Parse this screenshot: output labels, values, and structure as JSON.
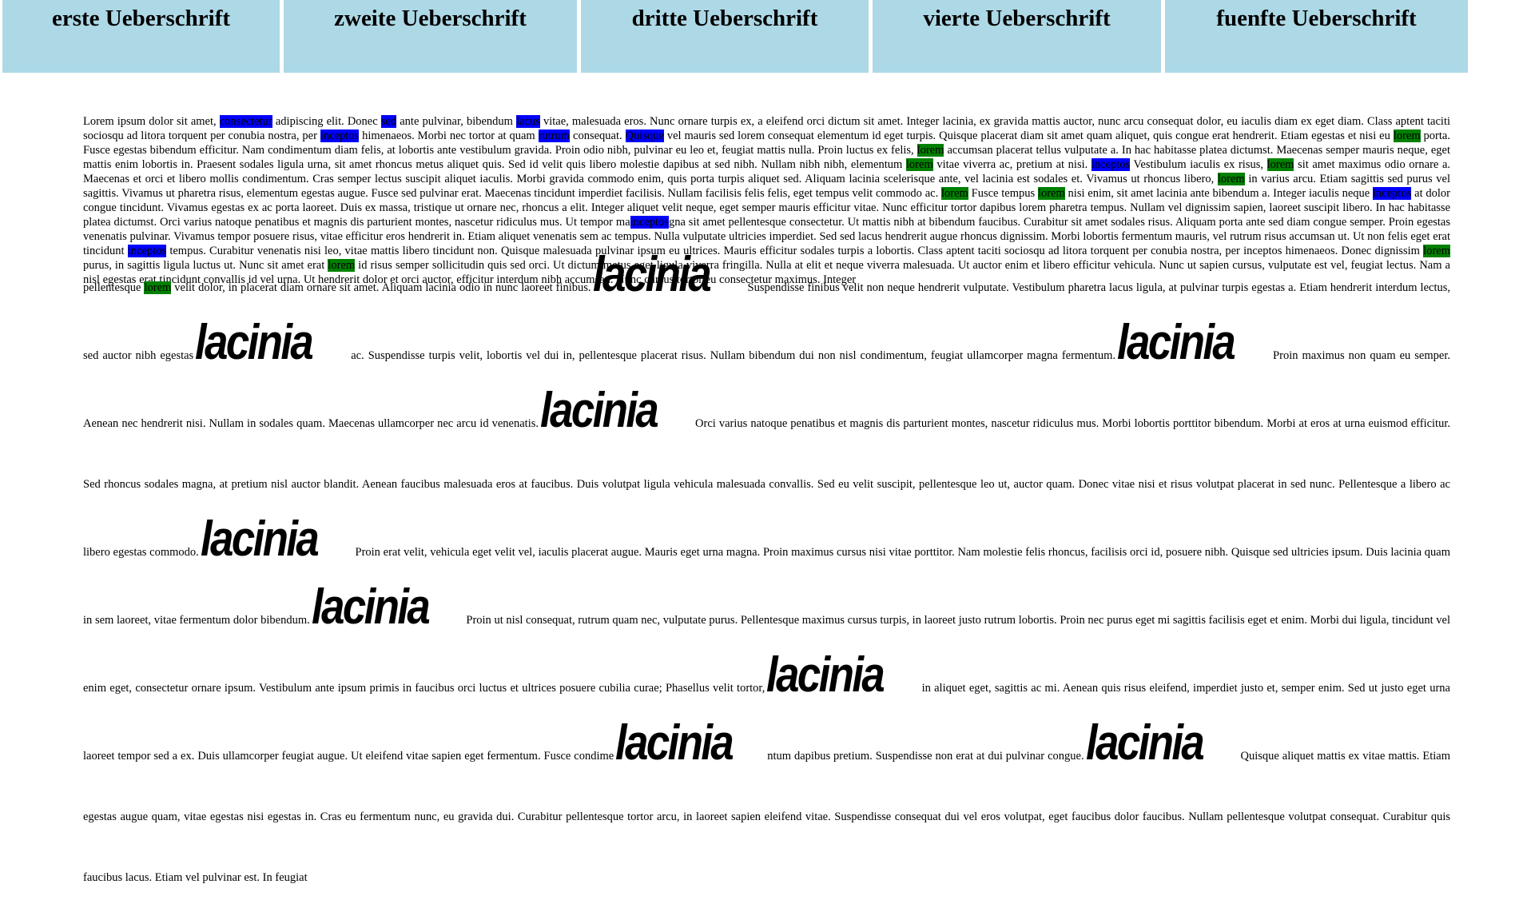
{
  "nav": {
    "items": [
      {
        "label": "erste Ueberschrift"
      },
      {
        "label": "zweite Ueberschrift"
      },
      {
        "label": "dritte Ueberschrift"
      },
      {
        "label": "vierte Ueberschrift"
      },
      {
        "label": "fuenfte Ueberschrift"
      }
    ]
  },
  "colors": {
    "nav_bg": "#add8e6",
    "highlight_blue": "#0000ff",
    "highlight_green": "#008000"
  },
  "logo_word": "lacinia",
  "p1": {
    "t00": "Lorem ipsum dolor sit amet, ",
    "h01": "consectetur",
    "t01": " adipiscing elit. Donec ",
    "h02": "sed",
    "t02": " ante pulvinar, bibendum ",
    "h03": "lacus",
    "t03": " vitae, malesuada eros. Nunc ornare turpis ex, a eleifend orci dictum sit amet. Integer lacinia, ex gravida mattis auctor, nunc arcu consequat dolor, eu iaculis diam ex eget diam. Class aptent taciti sociosqu ad litora torquent per conubia nostra, per ",
    "h04": "inceptos",
    "t04": " himenaeos. Morbi nec tortor at quam ",
    "h05": "rutrum",
    "t05": " consequat. ",
    "h06": "Quisque",
    "t06": " vel mauris sed lorem consequat elementum id eget turpis. Quisque placerat diam sit amet quam aliquet, quis congue erat hendrerit. Etiam egestas et nisi eu ",
    "h07": "lorem",
    "t07": " porta. Fusce egestas bibendum efficitur. Nam condimentum diam felis, at lobortis ante vestibulum gravida. Proin odio nibh, pulvinar eu leo et, feugiat mattis nulla. Proin luctus ex felis, ",
    "h08": "lorem",
    "t08": " accumsan placerat tellus vulputate a. In hac habitasse platea dictumst. Maecenas semper mauris neque, eget mattis enim lobortis in. Praesent sodales ligula urna, sit amet rhoncus metus aliquet quis. Sed id velit quis libero molestie dapibus at sed nibh. Nullam nibh nibh, elementum ",
    "h09": "lorem",
    "t09": " vitae viverra ac, pretium at nisi. ",
    "h10": "inceptos",
    "t10": " Vestibulum iaculis ex risus, ",
    "h11": "lorem",
    "t11": " sit amet maximus odio ornare a. Maecenas et orci et libero mollis condimentum. Cras semper lectus suscipit aliquet iaculis. Morbi gravida commodo enim, quis porta turpis aliquet sed. Aliquam lacinia scelerisque ante, vel lacinia est sodales et. Vivamus ut rhoncus libero, ",
    "h12": "lorem",
    "t12": " in varius arcu. Etiam sagittis sed purus vel sagittis. Vivamus ut pharetra risus, elementum egestas augue. Fusce sed pulvinar erat. Maecenas tincidunt imperdiet facilisis. Nullam facilisis felis felis, eget tempus velit commodo ac. ",
    "h13": "lorem",
    "t13": " Fusce tempus ",
    "h14": "lorem",
    "t14": " nisi enim, sit amet lacinia ante bibendum a. Integer iaculis neque ",
    "h15": "inceptos",
    "t15": " at dolor congue tincidunt. Vivamus egestas ex ac porta laoreet. Duis ex massa, tristique ut ornare nec, rhoncus a elit. Integer aliquet velit neque, eget semper mauris efficitur vitae. Nunc efficitur tortor dapibus lorem pharetra tempus. Nullam vel dignissim sapien, laoreet suscipit libero. In hac habitasse platea dictumst. Orci varius natoque penatibus et magnis dis parturient montes, nascetur ridiculus mus. Ut tempor ma",
    "h16": "inceptos",
    "t16": "gna sit amet pellentesque consectetur. Ut mattis nibh at bibendum faucibus. Curabitur sit amet sodales risus. Aliquam porta ante sed diam congue semper. Proin egestas venenatis pulvinar. Vivamus tempor posuere risus, vitae efficitur eros hendrerit in. Etiam aliquet venenatis sem ac tempus. Nulla vulputate ultricies imperdiet. Sed sed lacus hendrerit augue rhoncus dignissim. Morbi lobortis fermentum mauris, vel rutrum risus accumsan ut. Ut non felis eget erat tincidunt ",
    "h17": "inceptos",
    "t17": " tempus. Curabitur venenatis nisi leo, vitae mattis libero tincidunt non. Quisque malesuada pulvinar ipsum eu ultrices. Mauris efficitur sodales turpis a lobortis. Class aptent taciti sociosqu ad litora torquent per conubia nostra, per inceptos himenaeos. Donec dignissim ",
    "h18": "lorem",
    "t18": " purus, in sagittis ligula luctus ut. Nunc sit amet erat ",
    "h19": "lorem",
    "t19": " id risus semper sollicitudin quis sed orci. Ut dictum metus eget ligula viverra fringilla. Nulla at elit et neque viverra malesuada. Ut auctor enim et libero efficitur vehicula. Nunc ut sapien cursus, vulputate est vel, feugiat lectus. Nam a nisl egestas erat tincidunt convallis id vel urna. Ut hendrerit dolor et orci auctor, efficitur interdum nibh accumsan. Nunc cursus tortor eu consectetur maximus. Integer"
  },
  "p2": {
    "s00": "pellentesque ",
    "g01": "lorem",
    "s01": " velit dolor, in placerat diam ornare sit amet. Aliquam lacinia odio in nunc laoreet finibus.",
    "s02": " Suspendisse finibus velit non neque hendrerit vulputate. Vestibulum pharetra lacus ligula, at pulvinar turpis egestas a. Etiam hendrerit interdum lectus, sed auctor nibh egestas",
    "s03": " ac. Suspendisse turpis velit, lobortis vel dui in, pellentesque placerat risus. Nullam bibendum dui non nisl condimentum, feugiat ullamcorper magna fermentum.",
    "s04": " Proin maximus non quam eu semper. Aenean nec hendrerit nisi. Nullam in sodales quam. Maecenas ullamcorper nec arcu id venenatis.",
    "s05": " Orci varius natoque penatibus et magnis dis parturient montes, nascetur ridiculus mus. Morbi lobortis porttitor bibendum. Morbi at eros at urna euismod efficitur. Sed rhoncus sodales magna, at pretium nisl auctor blandit. Aenean faucibus malesuada eros at faucibus. Duis volutpat ligula vehicula malesuada convallis. Sed eu velit suscipit, pellentesque leo ut, auctor quam. Donec vitae nisi et risus volutpat placerat in sed nunc. Pellentesque a libero ac libero egestas commodo.",
    "s06": " Proin erat velit, vehicula eget velit vel, iaculis placerat augue. Mauris eget urna magna. Proin maximus cursus nisi vitae porttitor. Nam molestie felis rhoncus, facilisis orci id, posuere nibh. Quisque sed ultricies ipsum. Duis lacinia quam in sem laoreet, vitae fermentum dolor bibendum.",
    "s07": " Proin ut nisl consequat, rutrum quam nec, vulputate purus. Pellentesque maximus cursus turpis, in laoreet justo rutrum lobortis. Proin nec purus eget mi sagittis facilisis eget et enim. Morbi dui ligula, tincidunt vel enim eget, consectetur ornare ipsum. Vestibulum ante ipsum primis in faucibus orci luctus et ultrices posuere cubilia curae; Phasellus velit tortor,",
    "s08": " in aliquet eget, sagittis ac mi. Aenean quis risus eleifend, imperdiet justo et, semper enim. Sed ut justo eget urna laoreet tempor sed a ex. Duis ullamcorper feugiat augue. Ut eleifend vitae sapien eget fermentum. Fusce condime",
    "s09": "ntum dapibus pretium. Suspendisse non erat at dui pulvinar congue.",
    "s10": " Quisque aliquet mattis ex vitae mattis. Etiam egestas augue quam, vitae egestas nisi egestas in. Cras eu fermentum nunc, eu gravida dui. Curabitur pellentesque tortor arcu, in laoreet sapien eleifend vitae. Suspendisse consequat dui vel eros volutpat, eget faucibus dolor faucibus. Nullam pellentesque volutpat consequat. Curabitur quis faucibus lacus. Etiam vel pulvinar est. In feugiat"
  }
}
